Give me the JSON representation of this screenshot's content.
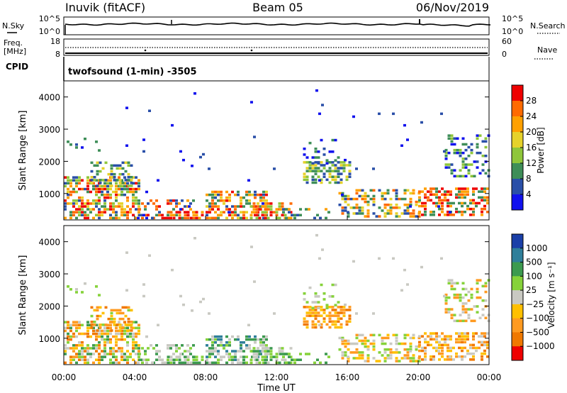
{
  "header": {
    "radar": "Inuvik (fitACF)",
    "beam": "Beam 05",
    "date": "06/Nov/2019"
  },
  "status_panels": {
    "nsky_label": "N.Sky",
    "nsearch_label": "N.Search",
    "nsky_ticks": [
      "10^5",
      "10^0"
    ],
    "freq_label_1": "Freq.",
    "freq_label_2": "[MHz]",
    "freq_ticks": [
      "18",
      "8"
    ],
    "nave_label": "Nave",
    "nave_ticks": [
      "60",
      "0"
    ],
    "cpid_label": "CPID",
    "cpid_value": "twofsound (1-min) -3505"
  },
  "chart_data": [
    {
      "type": "heatmap",
      "panel": "power",
      "ylabel": "Slant Range [km]",
      "yticks": [
        "1000",
        "2000",
        "3000",
        "4000"
      ],
      "ylim": [
        180,
        4500
      ],
      "colorbar_label": "Power [dB]",
      "colorbar_ticks": [
        "28",
        "24",
        "20",
        "16",
        "12",
        "8",
        "4"
      ],
      "colorbar_colors": [
        "#ee0000",
        "#ff6a00",
        "#ffa000",
        "#e6d22a",
        "#8fc63a",
        "#3e8e58",
        "#2a4fa8",
        "#1111ee"
      ],
      "clim": [
        0,
        32
      ]
    },
    {
      "type": "heatmap",
      "panel": "velocity",
      "ylabel": "Slant Range [km]",
      "yticks": [
        "1000",
        "2000",
        "3000",
        "4000"
      ],
      "ylim": [
        180,
        4500
      ],
      "colorbar_label": "Velocity [m s⁻¹]",
      "colorbar_ticks": [
        "1000",
        "500",
        "100",
        "25",
        "−25",
        "−100",
        "−500",
        "−1000"
      ],
      "colorbar_colors": [
        "#1a3fa8",
        "#2f7f9a",
        "#3c9a4f",
        "#86d23a",
        "#c9c9c2",
        "#ffc000",
        "#ff9a20",
        "#f07800",
        "#ee0000"
      ]
    }
  ],
  "time_axis": {
    "label": "Time UT",
    "ticks": [
      "00:00",
      "04:00",
      "08:00",
      "12:00",
      "16:00",
      "20:00",
      "00:00"
    ]
  }
}
